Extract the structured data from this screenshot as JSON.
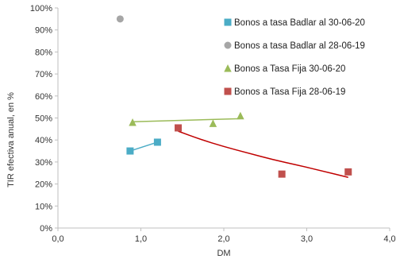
{
  "chart_data": {
    "type": "scatter",
    "xlabel": "DM",
    "ylabel": "TIR efectiva anual, en %",
    "xlim": [
      0,
      4
    ],
    "ylim": [
      0,
      1
    ],
    "x_ticks": [
      0,
      1,
      2,
      3,
      4
    ],
    "x_tick_labels": [
      "0,0",
      "1,0",
      "2,0",
      "3,0",
      "4,0"
    ],
    "y_ticks": [
      0,
      0.1,
      0.2,
      0.3,
      0.4,
      0.5,
      0.6,
      0.7,
      0.8,
      0.9,
      1.0
    ],
    "y_tick_labels": [
      "0%",
      "10%",
      "20%",
      "30%",
      "40%",
      "50%",
      "60%",
      "70%",
      "80%",
      "90%",
      "100%"
    ],
    "grid": false,
    "legend_position": "top-right",
    "series": [
      {
        "name": "Bonos a tasa Badlar al 30-06-20",
        "marker": "square",
        "color": "#4BACC6",
        "x": [
          0.87,
          1.2
        ],
        "y": [
          0.35,
          0.39
        ]
      },
      {
        "name": "Bonos a tasa Badlar al 28-06-19",
        "marker": "circle",
        "color": "#A6A6A6",
        "x": [
          0.75
        ],
        "y": [
          0.95
        ]
      },
      {
        "name": "Bonos a Tasa Fija 30-06-20",
        "marker": "triangle",
        "color": "#9BBB59",
        "x": [
          0.9,
          1.87,
          2.2
        ],
        "y": [
          0.48,
          0.475,
          0.51
        ]
      },
      {
        "name": "Bonos a Tasa Fija 28-06-19",
        "marker": "square",
        "color": "#C0504D",
        "x": [
          1.45,
          2.7,
          3.5
        ],
        "y": [
          0.455,
          0.245,
          0.255
        ]
      }
    ],
    "trendlines": [
      {
        "series": "Bonos a tasa Badlar al 30-06-20",
        "color": "#4BACC6",
        "type": "linear",
        "x": [
          0.87,
          1.2
        ],
        "y": [
          0.35,
          0.39
        ]
      },
      {
        "series": "Bonos a Tasa Fija 30-06-20",
        "color": "#9BBB59",
        "type": "linear",
        "x": [
          0.9,
          2.2
        ],
        "y": [
          0.483,
          0.497
        ]
      },
      {
        "series": "Bonos a Tasa Fija 28-06-19",
        "color": "#C00000",
        "type": "curve",
        "x": [
          1.45,
          1.7,
          2.0,
          2.3,
          2.6,
          2.9,
          3.2,
          3.5
        ],
        "y": [
          0.44,
          0.405,
          0.37,
          0.34,
          0.31,
          0.285,
          0.258,
          0.23
        ]
      }
    ]
  }
}
